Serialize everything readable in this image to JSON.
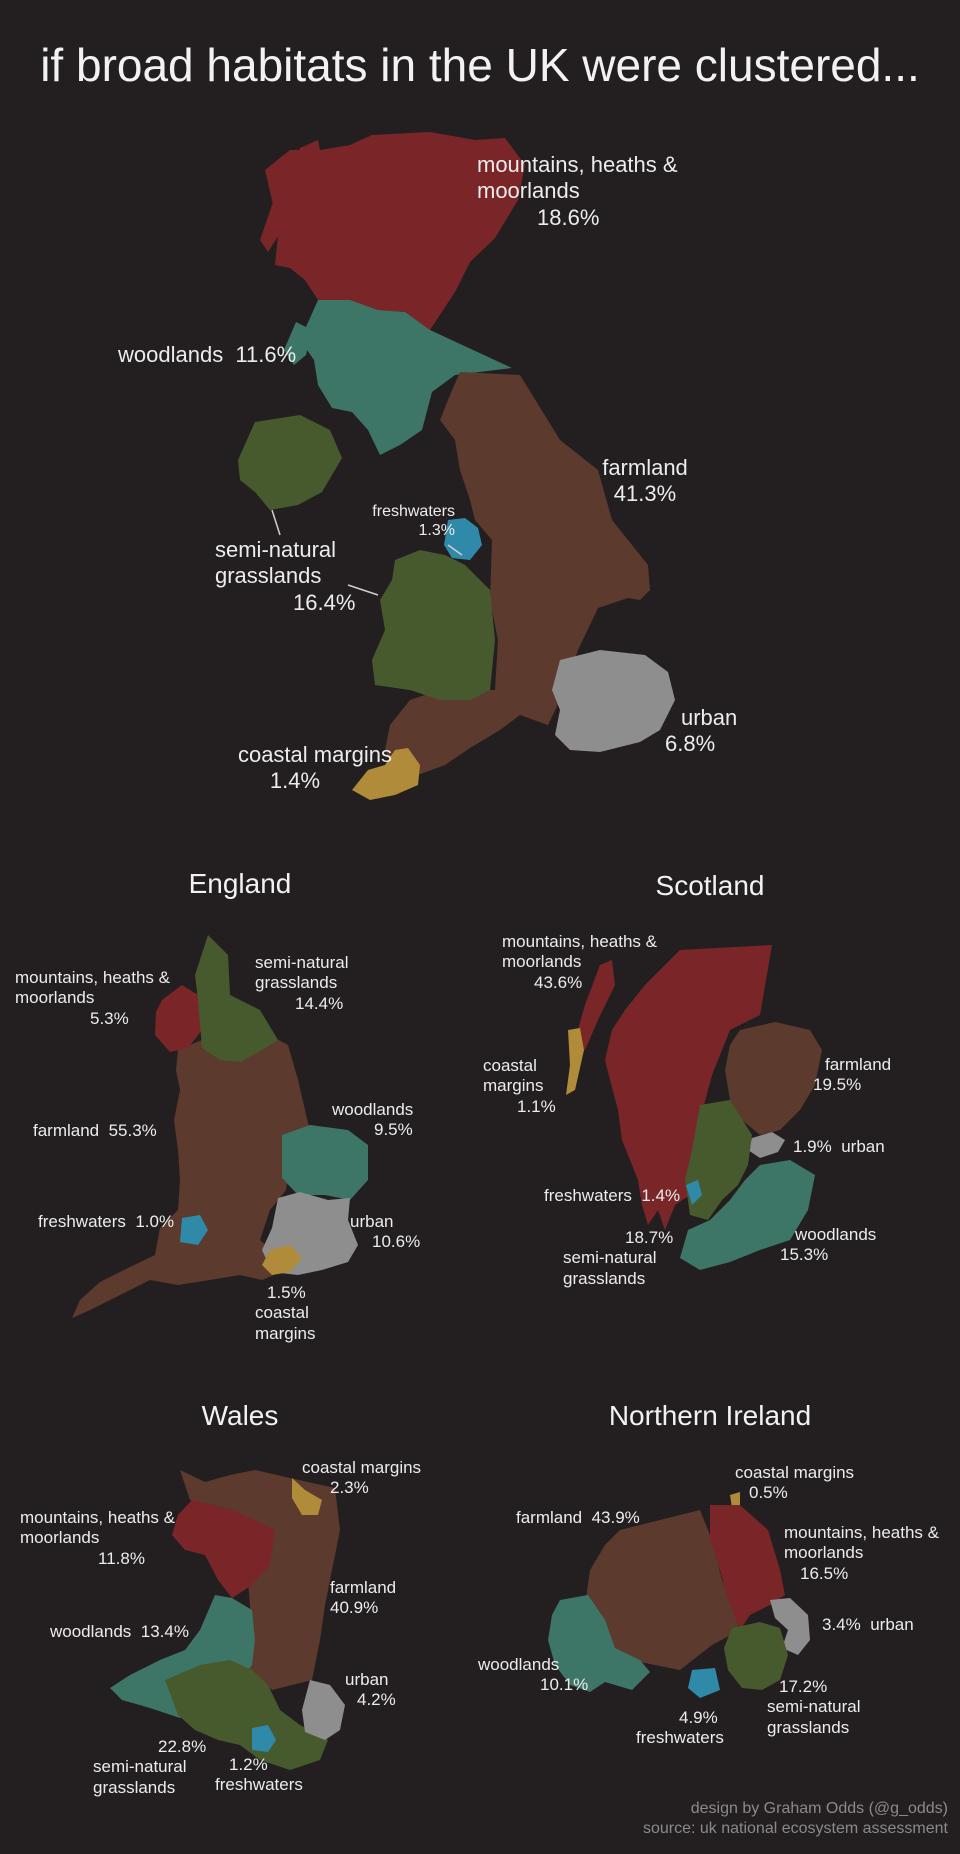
{
  "title": "if broad habitats in the UK were clustered...",
  "colors": {
    "background": "#231f20",
    "mountains": "#7a2628",
    "woodlands": "#3d7566",
    "semi_natural_grasslands": "#475a2e",
    "farmland": "#5c3a2d",
    "freshwaters": "#2e8aa8",
    "urban": "#8e8e8e",
    "coastal_margins": "#b08c3a"
  },
  "uk": {
    "mountains": {
      "name": "mountains, heaths &",
      "name2": "moorlands",
      "pct": "18.6%"
    },
    "woodlands": {
      "name": "woodlands",
      "pct": "11.6%"
    },
    "farmland": {
      "name": "farmland",
      "pct": "41.3%"
    },
    "freshwaters": {
      "name": "freshwaters",
      "pct": "1.3%"
    },
    "grasslands": {
      "name": "semi-natural",
      "name2": "grasslands",
      "pct": "16.4%"
    },
    "coastal": {
      "name": "coastal margins",
      "pct": "1.4%"
    },
    "urban": {
      "name": "urban",
      "pct": "6.8%"
    }
  },
  "england": {
    "heading": "England",
    "mountains": {
      "name": "mountains, heaths &",
      "name2": "moorlands",
      "pct": "5.3%"
    },
    "grasslands": {
      "name": "semi-natural",
      "name2": "grasslands",
      "pct": "14.4%"
    },
    "farmland": {
      "name": "farmland",
      "pct": "55.3%"
    },
    "woodlands": {
      "name": "woodlands",
      "pct": "9.5%"
    },
    "freshwaters": {
      "name": "freshwaters",
      "pct": "1.0%"
    },
    "urban": {
      "name": "urban",
      "pct": "10.6%"
    },
    "coastal": {
      "pct": "1.5%",
      "name": "coastal",
      "name2": "margins"
    }
  },
  "scotland": {
    "heading": "Scotland",
    "mountains": {
      "name": "mountains, heaths &",
      "name2": "moorlands",
      "pct": "43.6%"
    },
    "coastal": {
      "name": "coastal",
      "name2": "margins",
      "pct": "1.1%"
    },
    "farmland": {
      "name": "farmland",
      "pct": "19.5%"
    },
    "urban": {
      "pct": "1.9%",
      "name": "urban"
    },
    "freshwaters": {
      "name": "freshwaters",
      "pct": "1.4%"
    },
    "grasslands": {
      "pct": "18.7%",
      "name": "semi-natural",
      "name2": "grasslands"
    },
    "woodlands": {
      "name": "woodlands",
      "pct": "15.3%"
    }
  },
  "wales": {
    "heading": "Wales",
    "coastal": {
      "name": "coastal margins",
      "pct": "2.3%"
    },
    "mountains": {
      "name": "mountains, heaths &",
      "name2": "moorlands",
      "pct": "11.8%"
    },
    "farmland": {
      "name": "farmland",
      "pct": "40.9%"
    },
    "woodlands": {
      "name": "woodlands",
      "pct": "13.4%"
    },
    "urban": {
      "name": "urban",
      "pct": "4.2%"
    },
    "grasslands": {
      "pct": "22.8%",
      "name": "semi-natural",
      "name2": "grasslands"
    },
    "freshwaters": {
      "pct": "1.2%",
      "name": "freshwaters"
    }
  },
  "ni": {
    "heading": "Northern Ireland",
    "coastal": {
      "name": "coastal margins",
      "pct": "0.5%"
    },
    "farmland": {
      "name": "farmland",
      "pct": "43.9%"
    },
    "mountains": {
      "name": "mountains, heaths &",
      "name2": "moorlands",
      "pct": "16.5%"
    },
    "urban": {
      "pct": "3.4%",
      "name": "urban"
    },
    "woodlands": {
      "name": "woodlands",
      "pct": "10.1%"
    },
    "grasslands": {
      "pct": "17.2%",
      "name": "semi-natural",
      "name2": "grasslands"
    },
    "freshwaters": {
      "pct": "4.9%",
      "name": "freshwaters"
    }
  },
  "credit": {
    "design": "design by Graham Odds (@g_odds)",
    "source": "source: uk national ecosystem assessment"
  }
}
